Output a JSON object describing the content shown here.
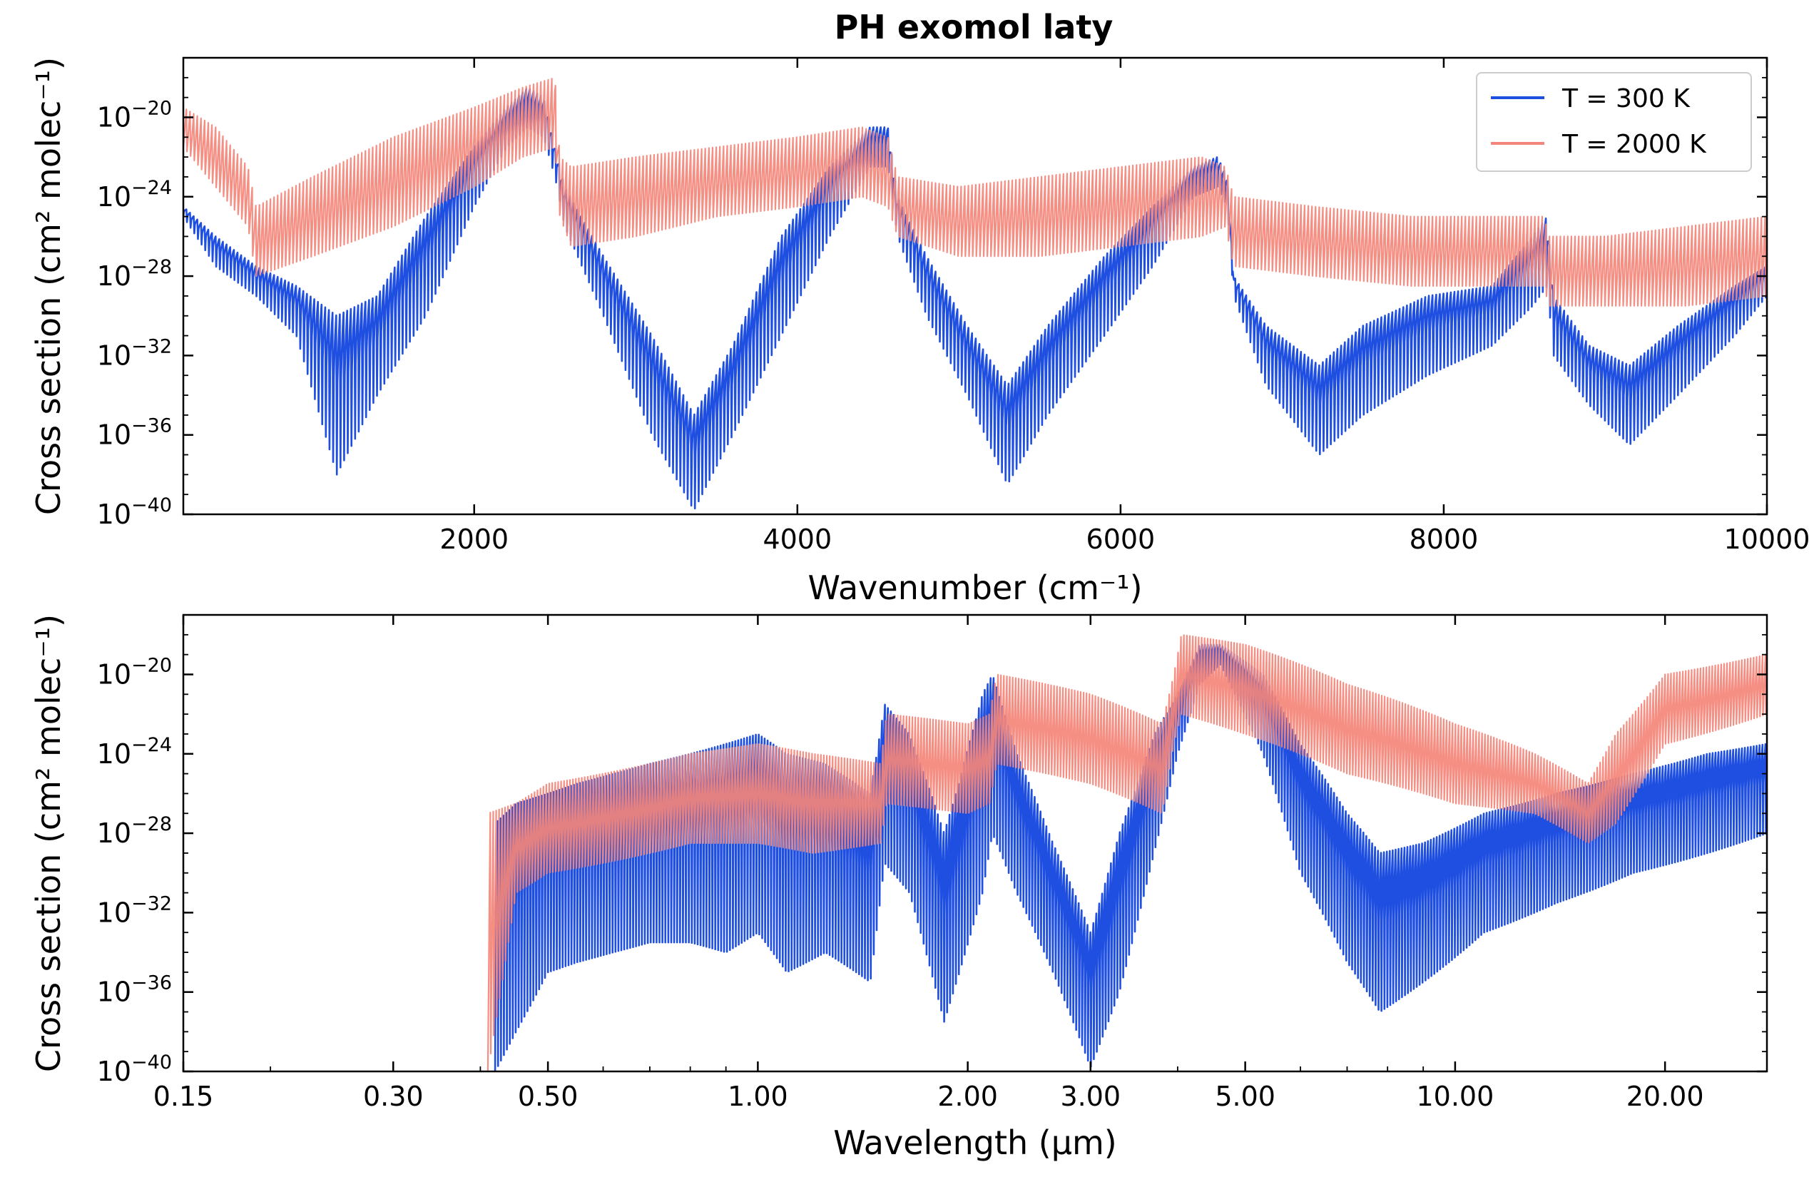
{
  "figure_title": "PH exomol laty",
  "colors": {
    "T300": "#1f4fe0",
    "T2000": "#f4857a"
  },
  "legend": [
    {
      "label": "T = 300 K",
      "color": "#1f4fe0"
    },
    {
      "label": "T = 2000 K",
      "color": "#f4857a"
    }
  ],
  "chart_data": [
    {
      "type": "line",
      "title": "PH exomol laty",
      "xlabel": "Wavenumber (cm⁻¹)",
      "ylabel": "Cross section (cm² molec⁻¹)",
      "xscale": "linear",
      "yscale": "log",
      "xlim": [
        200,
        10000
      ],
      "ylim_exp": [
        -40,
        -17
      ],
      "xticks": [
        2000,
        4000,
        6000,
        8000,
        10000
      ],
      "xtick_labels": [
        "2000",
        "4000",
        "6000",
        "8000",
        "10000"
      ],
      "yticks_exp": [
        -40,
        -36,
        -32,
        -28,
        -24,
        -20
      ],
      "ytick_labels": [
        "10",
        "10",
        "10",
        "10",
        "10",
        "10"
      ],
      "ytick_sups": [
        "−40",
        "−36",
        "−32",
        "−28",
        "−24",
        "−20"
      ],
      "legend_position": "top-right",
      "series": [
        {
          "name": "T = 300 K",
          "envelope_x": [
            200,
            400,
            650,
            900,
            1150,
            1400,
            1700,
            2000,
            2200,
            2330,
            2430,
            2500,
            2560,
            2800,
            3100,
            3360,
            3600,
            3900,
            4200,
            4450,
            4560,
            4620,
            4800,
            5050,
            5300,
            5550,
            5900,
            6200,
            6450,
            6600,
            6660,
            6700,
            6900,
            7230,
            7500,
            7900,
            8300,
            8550,
            8640,
            8680,
            8900,
            9150,
            9450,
            9800,
            10000
          ],
          "envelope_low_exp": [
            -25,
            -27.5,
            -29,
            -31,
            -38,
            -34,
            -30,
            -24.5,
            -21.5,
            -20.5,
            -21,
            -23,
            -25.5,
            -30,
            -36,
            -39.8,
            -36,
            -31,
            -26,
            -22.5,
            -22.5,
            -26,
            -30,
            -34,
            -38.5,
            -35,
            -31,
            -27.5,
            -24,
            -23.5,
            -24.5,
            -29,
            -33.5,
            -37,
            -35,
            -33,
            -31.5,
            -29.5,
            -28.5,
            -32,
            -34.5,
            -36.5,
            -34,
            -31,
            -29
          ],
          "envelope_high_exp": [
            -24.5,
            -26,
            -27.5,
            -28.5,
            -30,
            -29,
            -25,
            -21.5,
            -19.5,
            -18.5,
            -19,
            -21.5,
            -23.5,
            -27,
            -31,
            -35,
            -31.5,
            -26,
            -22.5,
            -20.5,
            -20.5,
            -24,
            -27,
            -30.5,
            -33.5,
            -30.5,
            -27,
            -24.5,
            -22.5,
            -22,
            -23,
            -28,
            -30.5,
            -32.5,
            -30.5,
            -29,
            -28.5,
            -26,
            -25,
            -29,
            -31.5,
            -32.5,
            -30.5,
            -28.5,
            -27.5
          ]
        },
        {
          "name": "T = 2000 K",
          "envelope_x": [
            200,
            400,
            600,
            650,
            1000,
            1500,
            2000,
            2300,
            2500,
            2530,
            2600,
            3000,
            3500,
            4000,
            4400,
            4560,
            4620,
            5000,
            5500,
            6000,
            6500,
            6650,
            6700,
            7200,
            7800,
            8300,
            8620,
            8650,
            9000,
            9500,
            10000
          ],
          "envelope_low_exp": [
            -21.5,
            -23.5,
            -25.5,
            -28,
            -27,
            -25.5,
            -23.5,
            -22,
            -21.5,
            -25,
            -26.5,
            -26,
            -25,
            -24.5,
            -24,
            -24.5,
            -26,
            -27,
            -27,
            -26.5,
            -26,
            -25.5,
            -27.5,
            -28,
            -28.5,
            -28.5,
            -28.5,
            -29.5,
            -29.5,
            -29.5,
            -29
          ],
          "envelope_high_exp": [
            -19.5,
            -20.5,
            -22.5,
            -24.5,
            -23,
            -21,
            -19.5,
            -18.5,
            -18,
            -22,
            -22.5,
            -22,
            -21.5,
            -21,
            -20.5,
            -21,
            -23,
            -23.5,
            -23,
            -22.5,
            -22,
            -22.5,
            -24,
            -24.5,
            -25,
            -25,
            -25,
            -26,
            -26,
            -25.5,
            -25
          ]
        }
      ]
    },
    {
      "type": "line",
      "xlabel": "Wavelength (µm)",
      "ylabel": "Cross section (cm² molec⁻¹)",
      "xscale": "log",
      "yscale": "log",
      "xlim": [
        0.15,
        28
      ],
      "ylim_exp": [
        -40,
        -17
      ],
      "xticks": [
        0.15,
        0.3,
        0.5,
        1,
        2,
        3,
        5,
        10,
        20
      ],
      "xtick_labels": [
        "0.15",
        "0.30",
        "0.50",
        "1.00",
        "2.00",
        "3.00",
        "5.00",
        "10.00",
        "20.00"
      ],
      "yticks_exp": [
        -40,
        -36,
        -32,
        -28,
        -24,
        -20
      ],
      "ytick_labels": [
        "10",
        "10",
        "10",
        "10",
        "10",
        "10"
      ],
      "ytick_sups": [
        "−40",
        "−36",
        "−32",
        "−28",
        "−24",
        "−20"
      ],
      "series": [
        {
          "name": "T = 300 K",
          "envelope_x": [
            0.42,
            0.45,
            0.5,
            0.55,
            0.62,
            0.7,
            0.8,
            0.9,
            1.0,
            1.1,
            1.25,
            1.45,
            1.52,
            1.65,
            1.85,
            2.1,
            2.17,
            2.35,
            2.65,
            3.0,
            3.3,
            3.7,
            4.0,
            4.3,
            4.6,
            5.3,
            6.0,
            7.0,
            7.8,
            9.0,
            11.0,
            14.0,
            18.0,
            23.0,
            28.0
          ],
          "envelope_low_exp": [
            -40,
            -38,
            -35,
            -34.5,
            -34,
            -33.5,
            -33.5,
            -34,
            -33,
            -35,
            -34,
            -35.5,
            -29.5,
            -31,
            -37.5,
            -31,
            -28,
            -31,
            -35,
            -39.8,
            -36,
            -29,
            -24,
            -20.5,
            -19.5,
            -24,
            -30,
            -34.5,
            -37,
            -35.5,
            -33,
            -31.5,
            -30,
            -29,
            -28
          ],
          "envelope_high_exp": [
            -27.5,
            -26.5,
            -26,
            -25.5,
            -25,
            -24.5,
            -24,
            -23.5,
            -23,
            -24,
            -24.5,
            -26,
            -21.5,
            -23,
            -28,
            -21,
            -20,
            -24,
            -28.5,
            -33,
            -28,
            -23,
            -21,
            -18.5,
            -18.5,
            -20,
            -23.5,
            -27,
            -29,
            -28.5,
            -27,
            -26,
            -25,
            -24,
            -23.5
          ]
        },
        {
          "name": "T = 2000 K",
          "envelope_x": [
            0.41,
            0.45,
            0.5,
            0.6,
            0.7,
            0.8,
            1.0,
            1.2,
            1.5,
            1.53,
            2.0,
            2.15,
            2.2,
            3.0,
            3.8,
            3.95,
            4.05,
            5.0,
            7.0,
            10.0,
            13.0,
            15.5,
            17.0,
            20.0,
            28.0
          ],
          "envelope_low_exp": [
            -40,
            -31,
            -30,
            -29.5,
            -29,
            -28.5,
            -28.5,
            -29,
            -28.5,
            -26.5,
            -27,
            -26.5,
            -24.5,
            -25.5,
            -27,
            -23.5,
            -22,
            -23,
            -25,
            -26.5,
            -27,
            -28.5,
            -27.5,
            -23.5,
            -22
          ],
          "envelope_high_exp": [
            -27,
            -26.5,
            -25.5,
            -25,
            -24.5,
            -24,
            -23.5,
            -24,
            -24.5,
            -22,
            -22.5,
            -22,
            -20,
            -21,
            -22.5,
            -20,
            -18,
            -18.5,
            -20.5,
            -22.5,
            -24,
            -25.5,
            -23,
            -20,
            -19
          ]
        }
      ]
    }
  ]
}
